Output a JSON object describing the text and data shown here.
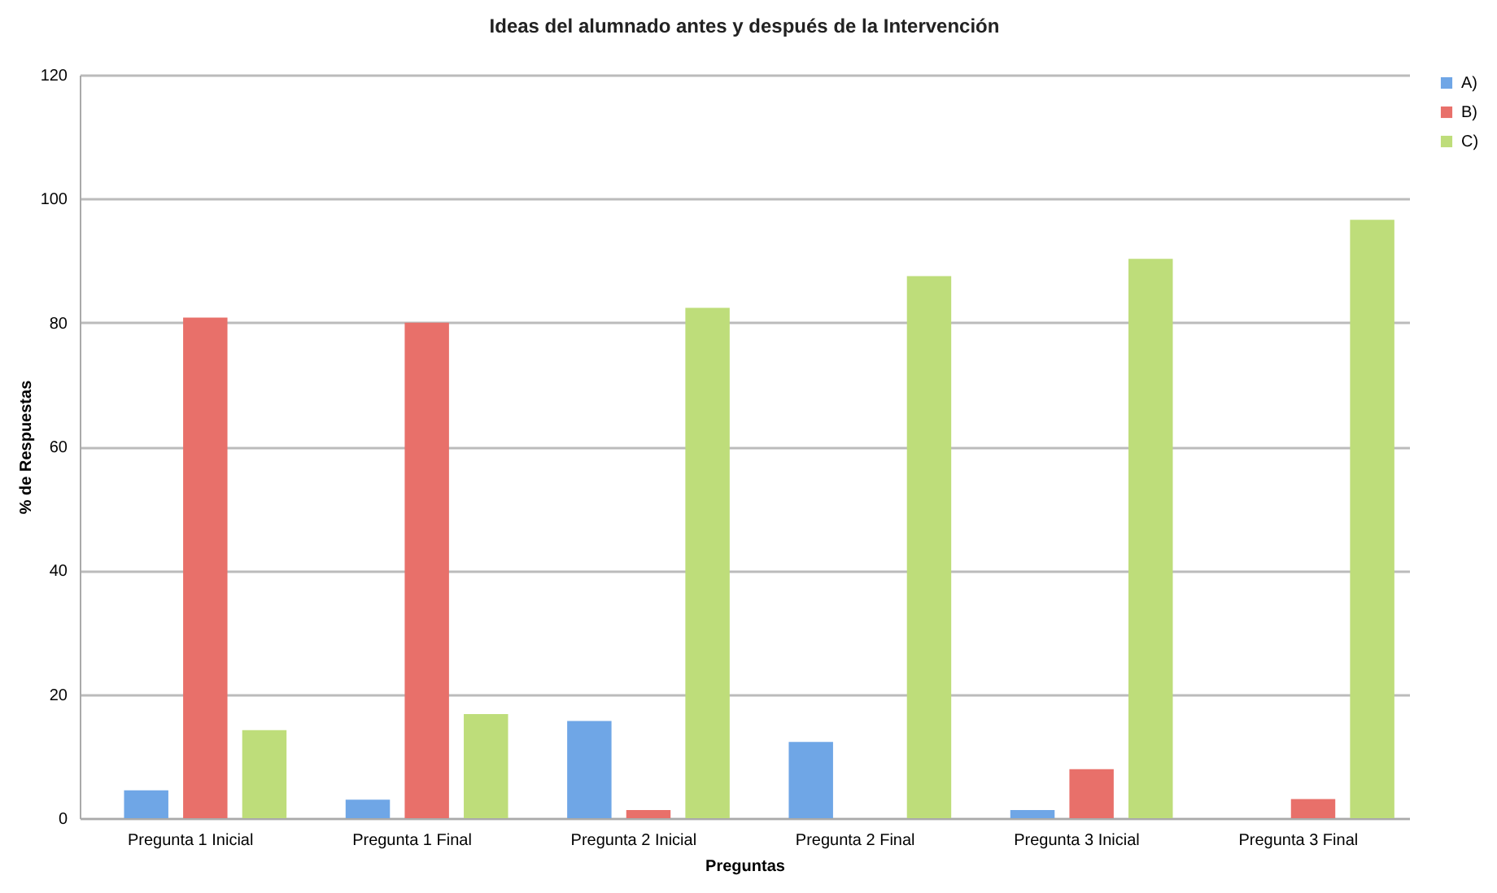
{
  "chart_data": {
    "type": "bar",
    "title": "Ideas del alumnado antes y después de la Intervención",
    "xlabel": "Preguntas",
    "ylabel": "% de Respuestas",
    "categories": [
      "Pregunta 1 Inicial",
      "Pregunta 1 Final",
      "Pregunta 2 Inicial",
      "Pregunta 2 Final",
      "Pregunta 3 Inicial",
      "Pregunta 3 Final"
    ],
    "series": [
      {
        "name": "A)",
        "color": "#6fa6e6",
        "values": [
          4.5,
          3,
          15.7,
          12.3,
          1.3,
          0
        ]
      },
      {
        "name": "B)",
        "color": "#e8706a",
        "values": [
          80.8,
          80,
          1.3,
          0,
          7.9,
          3.1
        ]
      },
      {
        "name": "C)",
        "color": "#bedd7a",
        "values": [
          14.2,
          16.8,
          82.4,
          87.5,
          90.3,
          96.6
        ]
      }
    ],
    "ylim": [
      0,
      120
    ],
    "yticks": [
      0,
      20,
      40,
      60,
      80,
      100,
      120
    ],
    "grid": "y",
    "legend": "right"
  }
}
